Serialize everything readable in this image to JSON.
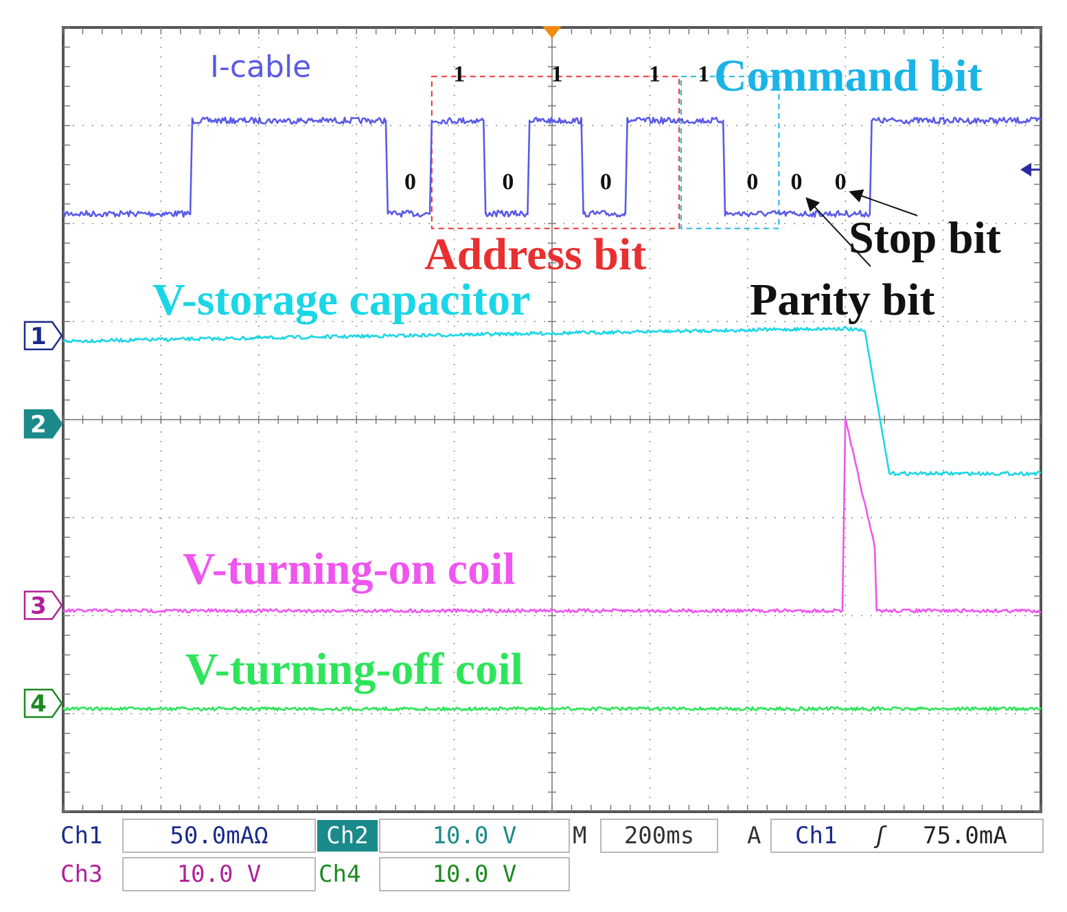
{
  "chart_data": {
    "type": "line",
    "title": "",
    "xlabel": "",
    "ylabel": "",
    "grid": true,
    "divisions": {
      "x": 10,
      "y": 8
    },
    "xlim": [
      0,
      10
    ],
    "ylim": [
      -4,
      4
    ],
    "series": [
      {
        "name": "I-cable",
        "channel": "1",
        "color": "#5a5ae6",
        "x": [
          0,
          1.3,
          1.32,
          3.3,
          3.32,
          3.75,
          3.77,
          4.3,
          4.32,
          4.75,
          4.77,
          5.3,
          5.32,
          5.75,
          5.77,
          6.75,
          6.77,
          8.25,
          8.27,
          10
        ],
        "y": [
          2.1,
          2.1,
          3.05,
          3.05,
          2.1,
          2.1,
          3.05,
          3.05,
          2.1,
          2.1,
          3.05,
          3.05,
          2.1,
          2.1,
          3.05,
          3.05,
          2.1,
          2.1,
          3.05,
          3.05
        ]
      },
      {
        "name": "V-storage capacitor",
        "channel": "1",
        "color": "#1ad6e6",
        "x": [
          0,
          8,
          8.2,
          8.45,
          10
        ],
        "y": [
          0.8,
          0.93,
          0.9,
          -0.55,
          -0.55
        ]
      },
      {
        "name": "V-turning-on coil",
        "channel": "3",
        "color": "#ef55ef",
        "x": [
          0,
          7.97,
          8.0,
          8.3,
          8.32,
          10
        ],
        "y": [
          -1.95,
          -1.95,
          0.0,
          -1.3,
          -1.95,
          -1.95
        ]
      },
      {
        "name": "V-turning-off coil",
        "channel": "4",
        "color": "#2ee45a",
        "x": [
          0,
          10
        ],
        "y": [
          -2.95,
          -2.95
        ]
      }
    ],
    "bit_labels": [
      {
        "text": "0",
        "x": 3.55,
        "y": 2.35
      },
      {
        "text": "1",
        "x": 4.05,
        "y": 3.45
      },
      {
        "text": "0",
        "x": 4.55,
        "y": 2.35
      },
      {
        "text": "1",
        "x": 5.05,
        "y": 3.45
      },
      {
        "text": "0",
        "x": 5.55,
        "y": 2.35
      },
      {
        "text": "1",
        "x": 6.05,
        "y": 3.45
      },
      {
        "text": "1",
        "x": 6.55,
        "y": 3.45
      },
      {
        "text": "0",
        "x": 7.05,
        "y": 2.35
      },
      {
        "text": "0",
        "x": 7.5,
        "y": 2.35
      },
      {
        "text": "0",
        "x": 7.95,
        "y": 2.35
      }
    ],
    "annotations": {
      "i_cable": "I-cable",
      "command_bit": "Command bit",
      "address_bit": "Address bit",
      "stop_bit": "Stop bit",
      "parity_bit": "Parity bit",
      "v_storage": "V-storage capacitor",
      "v_on": "V-turning-on coil",
      "v_off": "V-turning-off coil"
    },
    "channel_markers": [
      "1",
      "2",
      "3",
      "4"
    ]
  },
  "colors": {
    "ch1": "#1a2a8a",
    "ch2": "#1a8a8a",
    "ch3": "#b0209a",
    "ch4": "#1a8a20",
    "address_box": "#e83030",
    "command_box": "#1ab4e6",
    "trigger": "#f08a10"
  },
  "readout": {
    "ch1_label": "Ch1",
    "ch1_value": "50.0mAΩ",
    "ch2_label": "Ch2",
    "ch2_value": "10.0 V",
    "ch3_label": "Ch3",
    "ch3_value": "10.0 V",
    "ch4_label": "Ch4",
    "ch4_value": "10.0 V",
    "time_prefix": "M",
    "timebase": "200ms",
    "trig_prefix": "A",
    "trig_source": "Ch1",
    "trig_slope": "ʃ",
    "trig_level": "75.0mA"
  }
}
